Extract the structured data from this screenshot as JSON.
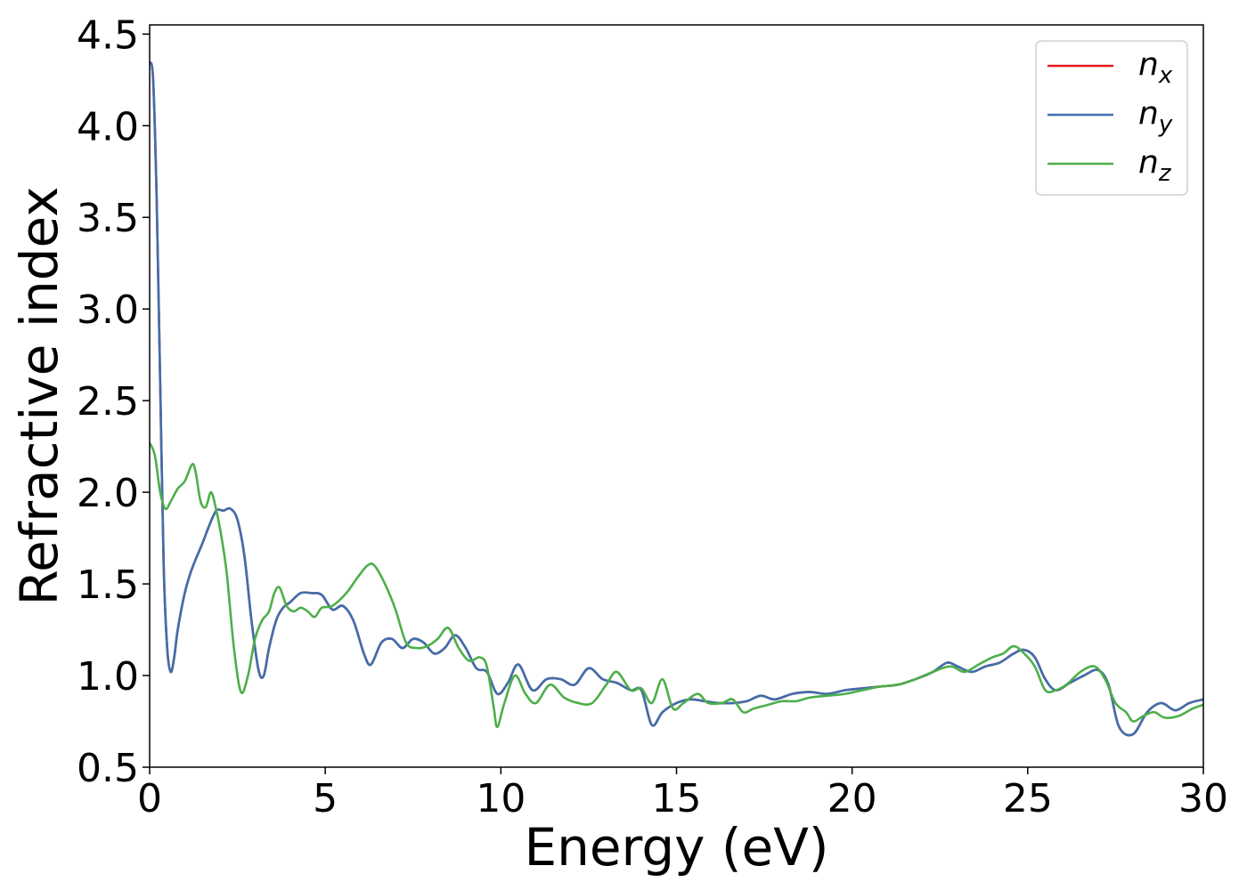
{
  "chart_data": {
    "type": "line",
    "title": "",
    "xlabel": "Energy (eV)",
    "ylabel": "Refractive index",
    "xlim": [
      0,
      30
    ],
    "ylim": [
      0.5,
      4.55
    ],
    "xticks": [
      0,
      5,
      10,
      15,
      20,
      25,
      30
    ],
    "yticks": [
      0.5,
      1.0,
      1.5,
      2.0,
      2.5,
      3.0,
      3.5,
      4.0,
      4.5
    ],
    "xtick_labels": [
      "0",
      "5",
      "10",
      "15",
      "20",
      "25",
      "30"
    ],
    "ytick_labels": [
      "0.5",
      "1.0",
      "1.5",
      "2.0",
      "2.5",
      "3.0",
      "3.5",
      "4.0",
      "4.5"
    ],
    "grid": false,
    "legend_position": "top-right",
    "series": [
      {
        "name": "n_x",
        "label_base": "n",
        "label_sub": "x",
        "color": "#e41a1c",
        "x": [
          0,
          0.1,
          0.2,
          0.3,
          0.4,
          0.5,
          0.6,
          0.7,
          0.8,
          1.0,
          1.2,
          1.5,
          1.7,
          1.9,
          2.1,
          2.3,
          2.5,
          2.7,
          2.9,
          3.1,
          3.25,
          3.4,
          3.6,
          3.8,
          4.0,
          4.3,
          4.6,
          4.9,
          5.2,
          5.5,
          5.8,
          6.1,
          6.3,
          6.6,
          6.9,
          7.2,
          7.5,
          7.8,
          8.1,
          8.4,
          8.7,
          9.0,
          9.3,
          9.6,
          9.9,
          10.2,
          10.5,
          10.9,
          11.3,
          11.7,
          12.1,
          12.5,
          12.9,
          13.3,
          13.7,
          14.0,
          14.3,
          14.6,
          15.0,
          15.4,
          15.8,
          16.2,
          16.6,
          17.0,
          17.4,
          17.8,
          18.3,
          18.8,
          19.3,
          19.8,
          20.3,
          20.8,
          21.3,
          21.8,
          22.3,
          22.7,
          23.0,
          23.4,
          23.8,
          24.2,
          24.6,
          24.9,
          25.2,
          25.5,
          25.8,
          26.2,
          26.6,
          27.0,
          27.3,
          27.6,
          28.0,
          28.4,
          28.8,
          29.2,
          29.6,
          30.0
        ],
        "values": [
          4.35,
          4.25,
          3.6,
          2.6,
          1.6,
          1.15,
          1.02,
          1.1,
          1.25,
          1.45,
          1.58,
          1.72,
          1.82,
          1.9,
          1.9,
          1.91,
          1.85,
          1.65,
          1.3,
          1.03,
          1.0,
          1.15,
          1.3,
          1.37,
          1.4,
          1.45,
          1.45,
          1.44,
          1.36,
          1.38,
          1.3,
          1.12,
          1.06,
          1.18,
          1.2,
          1.15,
          1.2,
          1.18,
          1.12,
          1.15,
          1.22,
          1.15,
          1.04,
          1.02,
          0.9,
          0.96,
          1.06,
          0.92,
          0.98,
          0.98,
          0.95,
          1.04,
          0.98,
          0.96,
          0.92,
          0.92,
          0.73,
          0.8,
          0.85,
          0.87,
          0.86,
          0.85,
          0.85,
          0.86,
          0.89,
          0.87,
          0.9,
          0.91,
          0.9,
          0.92,
          0.93,
          0.94,
          0.95,
          0.98,
          1.02,
          1.07,
          1.05,
          1.02,
          1.05,
          1.07,
          1.12,
          1.14,
          1.1,
          0.98,
          0.92,
          0.96,
          1.0,
          1.03,
          0.95,
          0.72,
          0.68,
          0.8,
          0.85,
          0.81,
          0.85,
          0.87
        ]
      },
      {
        "name": "n_y",
        "label_base": "n",
        "label_sub": "y",
        "color": "#3f6fad",
        "x": [
          0,
          0.1,
          0.2,
          0.3,
          0.4,
          0.5,
          0.6,
          0.7,
          0.8,
          1.0,
          1.2,
          1.5,
          1.7,
          1.9,
          2.1,
          2.3,
          2.5,
          2.7,
          2.9,
          3.1,
          3.25,
          3.4,
          3.6,
          3.8,
          4.0,
          4.3,
          4.6,
          4.9,
          5.2,
          5.5,
          5.8,
          6.1,
          6.3,
          6.6,
          6.9,
          7.2,
          7.5,
          7.8,
          8.1,
          8.4,
          8.7,
          9.0,
          9.3,
          9.6,
          9.9,
          10.2,
          10.5,
          10.9,
          11.3,
          11.7,
          12.1,
          12.5,
          12.9,
          13.3,
          13.7,
          14.0,
          14.3,
          14.6,
          15.0,
          15.4,
          15.8,
          16.2,
          16.6,
          17.0,
          17.4,
          17.8,
          18.3,
          18.8,
          19.3,
          19.8,
          20.3,
          20.8,
          21.3,
          21.8,
          22.3,
          22.7,
          23.0,
          23.4,
          23.8,
          24.2,
          24.6,
          24.9,
          25.2,
          25.5,
          25.8,
          26.2,
          26.6,
          27.0,
          27.3,
          27.6,
          28.0,
          28.4,
          28.8,
          29.2,
          29.6,
          30.0
        ],
        "values": [
          4.35,
          4.25,
          3.6,
          2.6,
          1.6,
          1.15,
          1.02,
          1.1,
          1.25,
          1.45,
          1.58,
          1.72,
          1.82,
          1.9,
          1.9,
          1.91,
          1.85,
          1.65,
          1.3,
          1.03,
          1.0,
          1.15,
          1.3,
          1.37,
          1.4,
          1.45,
          1.45,
          1.44,
          1.36,
          1.38,
          1.3,
          1.12,
          1.06,
          1.18,
          1.2,
          1.15,
          1.2,
          1.18,
          1.12,
          1.15,
          1.22,
          1.15,
          1.04,
          1.02,
          0.9,
          0.96,
          1.06,
          0.92,
          0.98,
          0.98,
          0.95,
          1.04,
          0.98,
          0.96,
          0.92,
          0.92,
          0.73,
          0.8,
          0.85,
          0.87,
          0.86,
          0.85,
          0.85,
          0.86,
          0.89,
          0.87,
          0.9,
          0.91,
          0.9,
          0.92,
          0.93,
          0.94,
          0.95,
          0.98,
          1.02,
          1.07,
          1.05,
          1.02,
          1.05,
          1.07,
          1.12,
          1.14,
          1.1,
          0.98,
          0.92,
          0.96,
          1.0,
          1.03,
          0.95,
          0.72,
          0.68,
          0.8,
          0.85,
          0.81,
          0.85,
          0.87
        ]
      },
      {
        "name": "n_z",
        "label_base": "n",
        "label_sub": "z",
        "color": "#4daf4a",
        "x": [
          0,
          0.15,
          0.3,
          0.45,
          0.6,
          0.8,
          1.0,
          1.2,
          1.3,
          1.45,
          1.6,
          1.75,
          1.9,
          2.05,
          2.2,
          2.4,
          2.6,
          2.8,
          3.0,
          3.2,
          3.4,
          3.55,
          3.7,
          3.9,
          4.1,
          4.3,
          4.5,
          4.7,
          4.9,
          5.2,
          5.6,
          5.9,
          6.2,
          6.4,
          6.7,
          7.0,
          7.3,
          7.6,
          7.9,
          8.2,
          8.5,
          8.8,
          9.1,
          9.4,
          9.6,
          9.8,
          9.9,
          10.1,
          10.4,
          10.7,
          11.0,
          11.4,
          11.8,
          12.2,
          12.6,
          13.0,
          13.3,
          13.7,
          14.0,
          14.3,
          14.6,
          14.9,
          15.2,
          15.6,
          15.9,
          16.3,
          16.6,
          16.9,
          17.2,
          17.6,
          18.0,
          18.4,
          18.8,
          19.3,
          19.8,
          20.3,
          20.8,
          21.3,
          21.8,
          22.3,
          22.8,
          23.2,
          23.6,
          24.0,
          24.3,
          24.6,
          24.9,
          25.2,
          25.5,
          25.8,
          26.1,
          26.5,
          26.9,
          27.2,
          27.5,
          27.8,
          28.0,
          28.3,
          28.6,
          28.9,
          29.3,
          29.7,
          30.0
        ],
        "values": [
          2.27,
          2.2,
          2.0,
          1.91,
          1.95,
          2.02,
          2.06,
          2.15,
          2.12,
          1.95,
          1.92,
          2.0,
          1.9,
          1.75,
          1.55,
          1.15,
          0.91,
          1.0,
          1.2,
          1.3,
          1.35,
          1.45,
          1.48,
          1.38,
          1.35,
          1.37,
          1.35,
          1.32,
          1.37,
          1.38,
          1.45,
          1.53,
          1.6,
          1.6,
          1.5,
          1.36,
          1.18,
          1.15,
          1.16,
          1.2,
          1.26,
          1.15,
          1.08,
          1.1,
          1.05,
          0.82,
          0.72,
          0.85,
          1.0,
          0.9,
          0.85,
          0.95,
          0.88,
          0.85,
          0.85,
          0.95,
          1.02,
          0.92,
          0.93,
          0.85,
          0.98,
          0.82,
          0.85,
          0.9,
          0.85,
          0.85,
          0.87,
          0.8,
          0.82,
          0.84,
          0.86,
          0.86,
          0.88,
          0.89,
          0.9,
          0.92,
          0.94,
          0.95,
          0.98,
          1.02,
          1.05,
          1.02,
          1.06,
          1.1,
          1.12,
          1.16,
          1.12,
          1.05,
          0.92,
          0.92,
          0.95,
          1.02,
          1.05,
          0.98,
          0.85,
          0.8,
          0.75,
          0.78,
          0.8,
          0.77,
          0.78,
          0.82,
          0.84
        ]
      }
    ]
  }
}
